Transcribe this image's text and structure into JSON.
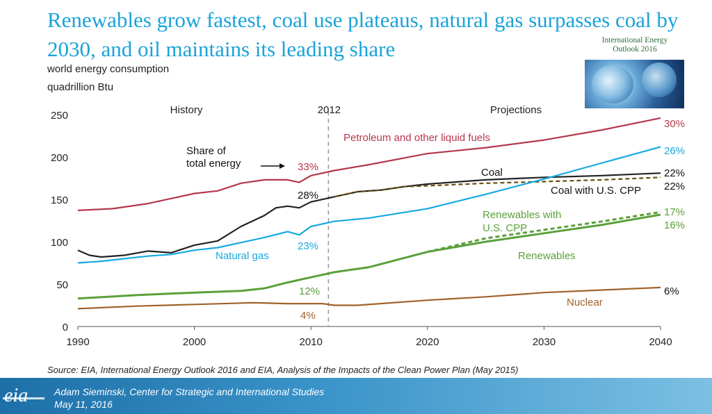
{
  "title": "Renewables grow fastest, coal use plateaus, natural gas surpasses coal by 2030, and oil maintains its leading share",
  "y_unit_line1": "world energy consumption",
  "y_unit_line2": "quadrillion Btu",
  "cover": {
    "title_line1": "International Energy",
    "title_line2": "Outlook 2016"
  },
  "source": "Source:  EIA, International Energy Outlook 2016 and EIA, Analysis of the Impacts of the Clean Power Plan (May 2015)",
  "footer": {
    "logo": "eia",
    "presenter": "Adam Sieminski, Center for Strategic and International Studies",
    "date": "May 11, 2016"
  },
  "colors": {
    "petroleum": "#b5384a",
    "coal": "#222222",
    "coal_cpp": "#6b4e0f",
    "natural_gas": "#17a9e1",
    "renewables": "#5ba03b",
    "nuclear": "#a0622a",
    "title": "#1aa3d8"
  },
  "chart_data": {
    "type": "line",
    "xlim": [
      1990,
      2040
    ],
    "ylim": [
      0,
      250
    ],
    "x_ticks": [
      1990,
      2000,
      2010,
      2020,
      2030,
      2040
    ],
    "y_ticks": [
      0,
      50,
      100,
      150,
      200,
      250
    ],
    "divider_year": 2011.5,
    "section_labels": {
      "history": "History",
      "year": "2012",
      "projections": "Projections"
    },
    "share_label": "Share of\ntotal energy",
    "series": [
      {
        "key": "petroleum",
        "name": "Petroleum and other liquid fuels",
        "style": "solid",
        "x": [
          1990,
          1993,
          1996,
          1998,
          2000,
          2002,
          2004,
          2006,
          2008,
          2009,
          2010,
          2012,
          2015,
          2020,
          2025,
          2030,
          2035,
          2040
        ],
        "y": [
          137,
          139,
          145,
          151,
          157,
          160,
          169,
          173,
          173,
          170,
          178,
          184,
          191,
          204,
          211,
          220,
          232,
          246
        ],
        "share_2010": "33%",
        "share_2040": "30%"
      },
      {
        "key": "coal",
        "name": "Coal",
        "style": "solid",
        "x": [
          1990,
          1991,
          1992,
          1994,
          1996,
          1998,
          2000,
          2002,
          2004,
          2006,
          2007,
          2008,
          2009,
          2010,
          2012,
          2014,
          2016,
          2018,
          2020,
          2025,
          2030,
          2035,
          2040
        ],
        "y": [
          90,
          84,
          82,
          84,
          89,
          87,
          96,
          101,
          118,
          131,
          140,
          142,
          140,
          147,
          153,
          159,
          161,
          165,
          168,
          173,
          176,
          178,
          181
        ],
        "share_2010": "28%",
        "share_2040": "22%"
      },
      {
        "key": "coal_cpp",
        "name": "Coal with U.S. CPP",
        "style": "dashed",
        "x": [
          2012,
          2014,
          2016,
          2018,
          2020,
          2025,
          2030,
          2035,
          2040
        ],
        "y": [
          153,
          159,
          161,
          165,
          166,
          169,
          171,
          173,
          176
        ],
        "share_2040": "22%"
      },
      {
        "key": "natural_gas",
        "name": "Natural gas",
        "style": "solid",
        "x": [
          1990,
          1992,
          1994,
          1996,
          1998,
          2000,
          2002,
          2004,
          2006,
          2008,
          2009,
          2010,
          2012,
          2015,
          2020,
          2025,
          2030,
          2035,
          2040
        ],
        "y": [
          75,
          77,
          80,
          83,
          85,
          90,
          93,
          99,
          105,
          112,
          108,
          118,
          124,
          128,
          139,
          156,
          174,
          193,
          212
        ],
        "share_2010": "23%",
        "share_2040": "26%"
      },
      {
        "key": "renewables",
        "name": "Renewables",
        "style": "solid",
        "x": [
          1990,
          1995,
          2000,
          2004,
          2006,
          2008,
          2010,
          2012,
          2015,
          2020,
          2025,
          2030,
          2035,
          2040
        ],
        "y": [
          33,
          37,
          40,
          42,
          45,
          52,
          58,
          64,
          70,
          88,
          100,
          110,
          120,
          132
        ],
        "share_2010": "12%",
        "share_2040": "16%"
      },
      {
        "key": "renewables_cpp",
        "name": "Renewables with\nU.S. CPP",
        "style": "dashed",
        "x": [
          2020,
          2025,
          2030,
          2035,
          2040
        ],
        "y": [
          88,
          104,
          114,
          124,
          135
        ],
        "share_2040": "17%"
      },
      {
        "key": "nuclear",
        "name": "Nuclear",
        "style": "solid",
        "x": [
          1990,
          1995,
          2000,
          2005,
          2008,
          2010,
          2011,
          2012,
          2014,
          2020,
          2025,
          2030,
          2035,
          2040
        ],
        "y": [
          21,
          24,
          26,
          28,
          27,
          27,
          27,
          25,
          25,
          31,
          35,
          40,
          43,
          46
        ],
        "share_2010": "4%",
        "share_2040": "6%"
      }
    ]
  }
}
